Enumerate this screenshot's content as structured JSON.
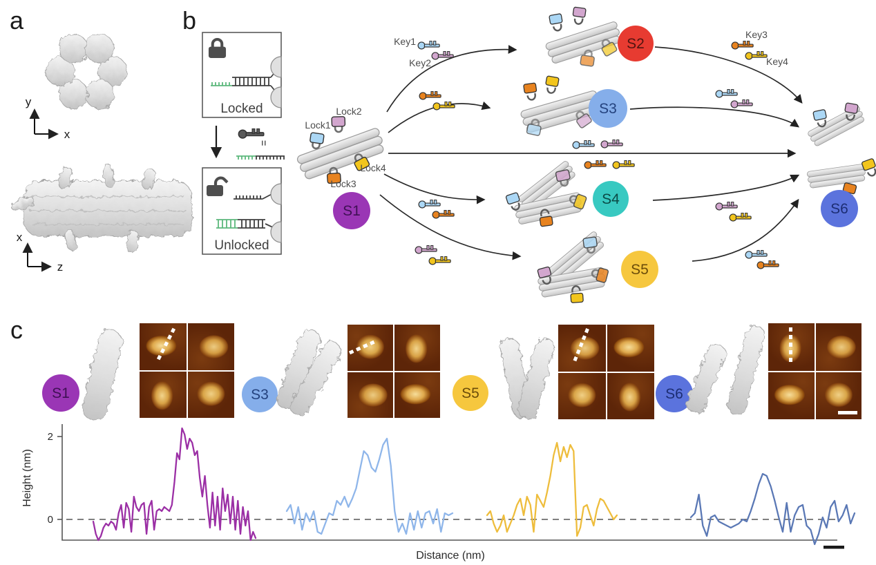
{
  "figure": {
    "panel_a": {
      "label": "a",
      "top_view_axes": {
        "vertical": "y",
        "horizontal": "x"
      },
      "side_view_axes": {
        "vertical": "x",
        "horizontal": "z"
      }
    },
    "panel_b": {
      "label": "b",
      "lock_mechanism": {
        "locked_label": "Locked",
        "unlocked_label": "Unlocked",
        "equivalence_symbol": "=",
        "toehold_color": "#5cb87c"
      },
      "locks": [
        {
          "label": "Lock1",
          "color": "#abd7f5"
        },
        {
          "label": "Lock2",
          "color": "#d2a6ce"
        },
        {
          "label": "Lock3",
          "color": "#e8831f"
        },
        {
          "label": "Lock4",
          "color": "#f2c51d"
        }
      ],
      "keys": [
        {
          "label": "Key1",
          "color": "#abd7f5"
        },
        {
          "label": "Key2",
          "color": "#d2a6ce"
        },
        {
          "label": "Key3",
          "color": "#e8831f"
        },
        {
          "label": "Key4",
          "color": "#f2c51d"
        }
      ],
      "states": [
        {
          "id": "S1",
          "color": "#9a36b5",
          "text_color": "#3f1054"
        },
        {
          "id": "S2",
          "color": "#e73b31",
          "text_color": "#521410"
        },
        {
          "id": "S3",
          "color": "#85aeea",
          "text_color": "#24427e"
        },
        {
          "id": "S4",
          "color": "#38c9c1",
          "text_color": "#0b4a46"
        },
        {
          "id": "S5",
          "color": "#f6c73e",
          "text_color": "#6b4c0a"
        },
        {
          "id": "S6",
          "color": "#5b73dd",
          "text_color": "#1c2d73"
        }
      ]
    },
    "panel_c": {
      "label": "c",
      "groups": [
        {
          "id": "S1"
        },
        {
          "id": "S3"
        },
        {
          "id": "S5"
        },
        {
          "id": "S6"
        }
      ]
    }
  },
  "chart_data": {
    "type": "line",
    "title": "",
    "ylabel": "Height (nm)",
    "xlabel": "Distance (nm)",
    "yticks": [
      2,
      0
    ],
    "ylim": [
      -0.6,
      2.4
    ],
    "zero_line": true,
    "legend_position": "none",
    "grid": false,
    "series": [
      {
        "name": "S1",
        "color": "#9b2fa5",
        "values": [
          -0.05,
          -0.35,
          -0.5,
          -0.4,
          -0.2,
          -0.1,
          -0.15,
          -0.05,
          -0.1,
          -0.25,
          0.15,
          0.35,
          -0.2,
          0.4,
          0.25,
          -0.3,
          0.55,
          0.3,
          0.2,
          0.35,
          0.4,
          -0.35,
          0.3,
          0.45,
          -0.25,
          0.2,
          0.25,
          0.2,
          0.3,
          0.25,
          0.2,
          0.35,
          0.9,
          1.6,
          1.45,
          2.2,
          2.05,
          1.7,
          1.95,
          1.85,
          1.55,
          1.65,
          1.0,
          0.55,
          1.05,
          0.35,
          -0.2,
          0.65,
          -0.15,
          0.55,
          -0.25,
          0.75,
          0.2,
          0.6,
          -0.1,
          0.55,
          -0.25,
          0.45,
          -0.35,
          0.3,
          -0.15,
          0.2,
          -0.5,
          -0.3,
          -0.45
        ]
      },
      {
        "name": "S3",
        "color": "#8fb6ea",
        "values": [
          0.2,
          0.35,
          -0.1,
          0.3,
          -0.25,
          0.15,
          -0.05,
          0.2,
          -0.3,
          -0.35,
          -0.1,
          0.15,
          0.1,
          0.45,
          0.35,
          0.55,
          0.3,
          0.5,
          0.75,
          1.2,
          1.65,
          1.55,
          1.25,
          1.15,
          1.45,
          1.8,
          1.95,
          1.3,
          0.2,
          -0.3,
          -0.1,
          -0.35,
          0.15,
          -0.25,
          0.2,
          -0.2,
          0.15,
          0.2,
          -0.1,
          0.25,
          -0.3,
          0.15,
          0.1,
          0.15
        ]
      },
      {
        "name": "S5",
        "color": "#eebd3c",
        "values": [
          0.1,
          0.2,
          -0.1,
          -0.3,
          -0.15,
          0.1,
          -0.3,
          -0.1,
          0.1,
          0.35,
          0.5,
          0.1,
          0.55,
          0.35,
          -0.3,
          0.6,
          0.45,
          0.3,
          0.65,
          1.05,
          1.55,
          1.85,
          1.4,
          1.75,
          1.5,
          1.8,
          1.65,
          -0.4,
          -0.2,
          0.3,
          0.35,
          0.1,
          -0.15,
          0.25,
          0.5,
          0.45,
          0.3,
          0.15,
          0.0,
          0.1
        ]
      },
      {
        "name": "S6",
        "color": "#5a78b5",
        "values": [
          0.05,
          0.15,
          0.6,
          -0.15,
          -0.4,
          0.05,
          0.1,
          -0.05,
          -0.1,
          -0.15,
          -0.2,
          -0.15,
          -0.1,
          0.0,
          -0.05,
          0.2,
          0.5,
          0.85,
          1.1,
          1.05,
          0.8,
          0.45,
          0.05,
          -0.3,
          0.4,
          -0.3,
          0.1,
          0.3,
          0.35,
          -0.15,
          -0.25,
          -0.6,
          -0.35,
          0.05,
          -0.2,
          0.3,
          0.45,
          -0.05,
          0.1,
          0.35,
          -0.1,
          0.15
        ]
      }
    ]
  }
}
